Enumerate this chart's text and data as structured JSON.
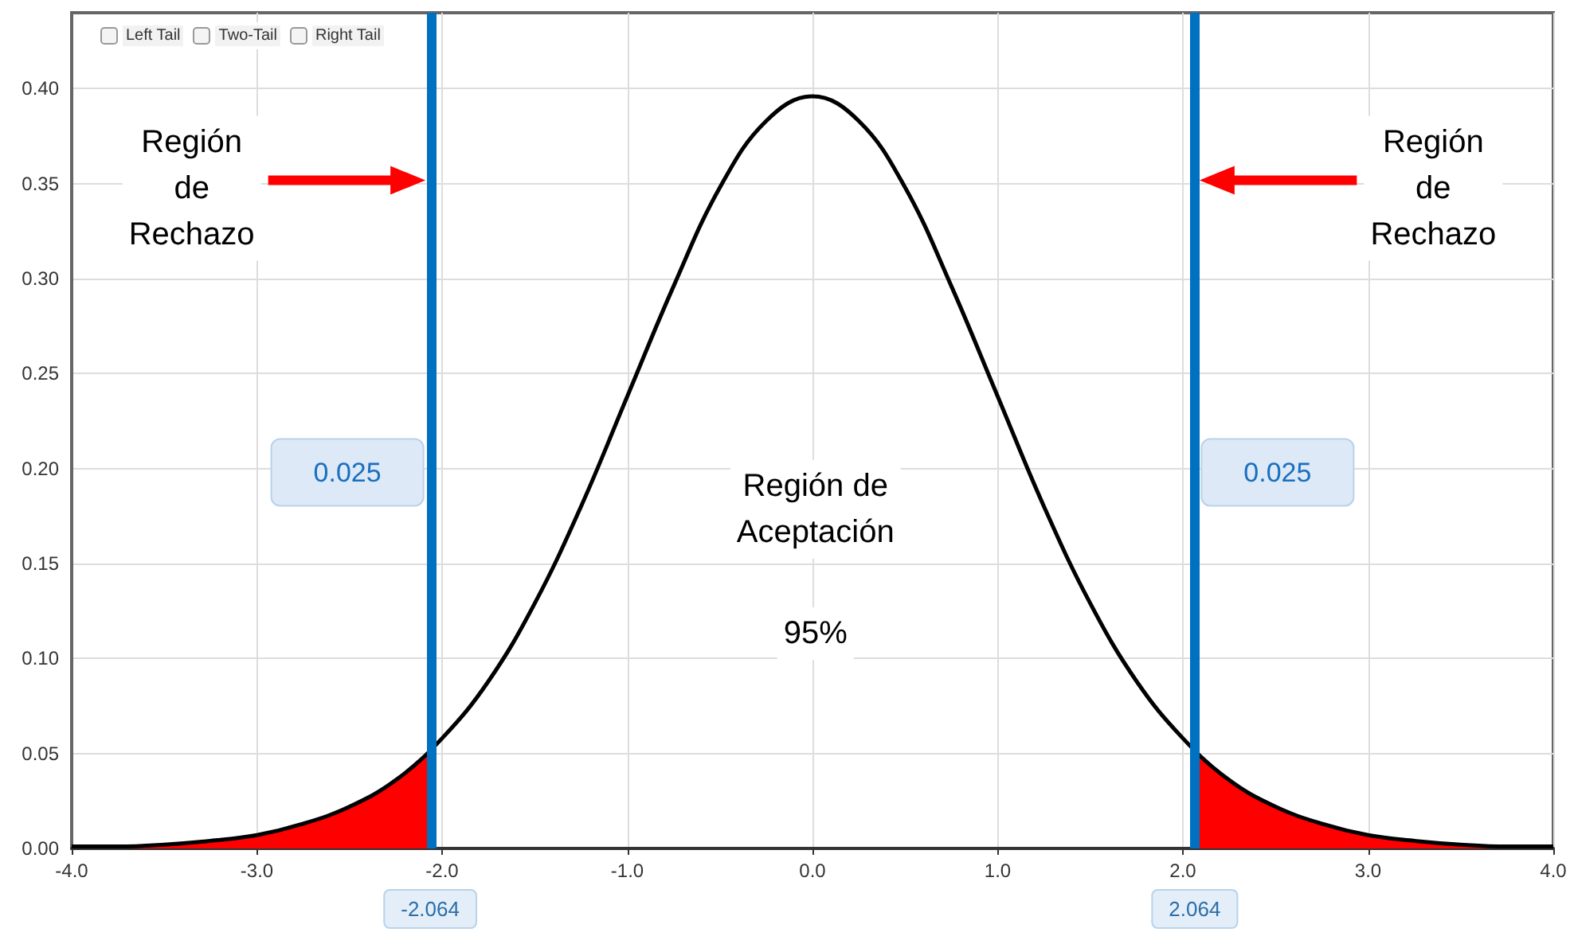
{
  "chart_data": {
    "type": "line",
    "x": [
      -4,
      -3.75,
      -3.5,
      -3.25,
      -3,
      -2.75,
      -2.5,
      -2.25,
      -2,
      -1.75,
      -1.5,
      -1.25,
      -1,
      -0.75,
      -0.5,
      -0.25,
      0,
      0.25,
      0.5,
      0.75,
      1,
      1.25,
      1.5,
      1.75,
      2,
      2.25,
      2.5,
      2.75,
      3,
      3.25,
      3.5,
      3.75,
      4
    ],
    "series": [
      {
        "color": "#000000",
        "values": [
          0.001,
          0.001,
          0.002,
          0.004,
          0.007,
          0.013,
          0.022,
          0.036,
          0.058,
          0.088,
          0.129,
          0.18,
          0.238,
          0.296,
          0.348,
          0.383,
          0.396,
          0.383,
          0.348,
          0.296,
          0.238,
          0.18,
          0.129,
          0.088,
          0.058,
          0.036,
          0.022,
          0.013,
          0.007,
          0.004,
          0.002,
          0.001,
          0.001
        ]
      },
      {
        "type": "area",
        "color": "#ff0000",
        "x": [
          -4,
          -3.75,
          -3.5,
          -3.25,
          -3,
          -2.75,
          -2.5,
          -2.25,
          -2.064
        ],
        "values": [
          0.001,
          0.001,
          0.002,
          0.004,
          0.007,
          0.013,
          0.022,
          0.036,
          0.051
        ]
      },
      {
        "type": "area",
        "color": "#ff0000",
        "x": [
          2.064,
          2.25,
          2.5,
          2.75,
          3,
          3.25,
          3.5,
          3.75,
          4
        ],
        "values": [
          0.051,
          0.036,
          0.022,
          0.013,
          0.007,
          0.004,
          0.002,
          0.001,
          0.001
        ]
      }
    ],
    "xlim": [
      -4,
      4
    ],
    "xticks": [
      {
        "value": -4,
        "label": "-4.0"
      },
      {
        "value": -3,
        "label": "-3.0"
      },
      {
        "value": -2,
        "label": "-2.0"
      },
      {
        "value": -1,
        "label": "-1.0"
      },
      {
        "value": 0,
        "label": "0.0"
      },
      {
        "value": 1,
        "label": "1.0"
      },
      {
        "value": 2,
        "label": "2.0"
      },
      {
        "value": 3,
        "label": "3.0"
      },
      {
        "value": 4,
        "label": "4.0"
      }
    ],
    "ylim": [
      0,
      0.44
    ],
    "yticks": [
      {
        "value": 0,
        "label": "0.00"
      },
      {
        "value": 0.05,
        "label": "0.05"
      },
      {
        "value": 0.1,
        "label": "0.10"
      },
      {
        "value": 0.15,
        "label": "0.15"
      },
      {
        "value": 0.2,
        "label": "0.20"
      },
      {
        "value": 0.25,
        "label": "0.25"
      },
      {
        "value": 0.3,
        "label": "0.30"
      },
      {
        "value": 0.35,
        "label": "0.35"
      },
      {
        "value": 0.4,
        "label": "0.40"
      }
    ],
    "ref_lines": [
      {
        "axis": "x",
        "value": -2.064,
        "label": "-2.064",
        "color": "#0070c0"
      },
      {
        "axis": "x",
        "value": 2.064,
        "label": "2.064",
        "color": "#0070c0"
      }
    ],
    "annotations": [
      "Left Tail",
      "Two-Tail",
      "Right Tail",
      "Región\nde\nRechazo",
      "Región\nde\nRechazo",
      "Región de\nAceptación",
      "95%",
      {
        "text": "0.025",
        "x": -2.064
      },
      {
        "text": "0.025",
        "x": 2.064
      }
    ],
    "grid": true,
    "marker": "none",
    "line_style": "solid"
  }
}
